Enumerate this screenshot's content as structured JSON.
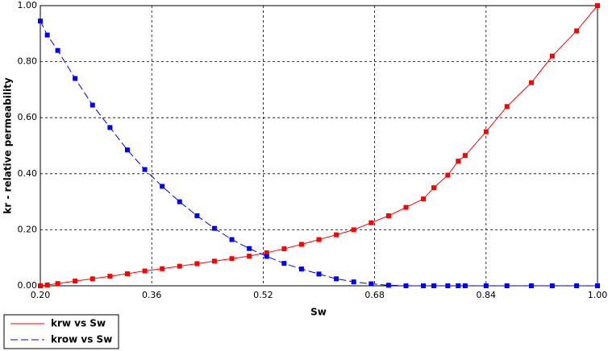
{
  "chart_data": {
    "type": "line",
    "xlabel": "Sw",
    "ylabel": "kr -  relative permeability",
    "x": [
      0.2,
      0.21,
      0.225,
      0.25,
      0.275,
      0.3,
      0.325,
      0.35,
      0.375,
      0.4,
      0.425,
      0.45,
      0.475,
      0.5,
      0.525,
      0.55,
      0.575,
      0.6,
      0.625,
      0.65,
      0.675,
      0.7,
      0.725,
      0.75,
      0.765,
      0.785,
      0.8,
      0.81,
      0.84,
      0.87,
      0.905,
      0.935,
      0.97,
      1.0
    ],
    "series": [
      {
        "name": "krw vs Sw",
        "color": "#ff0000",
        "dashed": false,
        "values": [
          0,
          0.003,
          0.008,
          0.017,
          0.025,
          0.034,
          0.043,
          0.053,
          0.061,
          0.07,
          0.079,
          0.088,
          0.097,
          0.106,
          0.118,
          0.132,
          0.148,
          0.165,
          0.182,
          0.2,
          0.225,
          0.25,
          0.28,
          0.31,
          0.35,
          0.395,
          0.445,
          0.465,
          0.55,
          0.64,
          0.725,
          0.82,
          0.91,
          1.0
        ]
      },
      {
        "name": "krow vs Sw",
        "color": "#0000ff",
        "dashed": true,
        "values": [
          0.945,
          0.895,
          0.84,
          0.74,
          0.645,
          0.565,
          0.485,
          0.415,
          0.355,
          0.3,
          0.25,
          0.205,
          0.165,
          0.133,
          0.105,
          0.08,
          0.06,
          0.042,
          0.025,
          0.014,
          0.007,
          0.002,
          0,
          0,
          0,
          0,
          0,
          0,
          0,
          0,
          0,
          0,
          0,
          0
        ]
      }
    ],
    "xlim": [
      0.2,
      1.0
    ],
    "xticks": [
      {
        "value": 0.2,
        "label": "0.20"
      },
      {
        "value": 0.36,
        "label": "0.36"
      },
      {
        "value": 0.52,
        "label": "0.52"
      },
      {
        "value": 0.68,
        "label": "0.68"
      },
      {
        "value": 0.84,
        "label": "0.84"
      },
      {
        "value": 1.0,
        "label": "1.00"
      }
    ],
    "ylim": [
      0,
      1
    ],
    "yticks": [
      {
        "value": 0,
        "label": "0.00"
      },
      {
        "value": 0.2,
        "label": "0.20"
      },
      {
        "value": 0.4,
        "label": "0.40"
      },
      {
        "value": 0.6,
        "label": "0.60"
      },
      {
        "value": 0.8,
        "label": "0.80"
      },
      {
        "value": 1.0,
        "label": "1.00"
      }
    ],
    "grid": true,
    "legend_position": "bottom-left"
  }
}
